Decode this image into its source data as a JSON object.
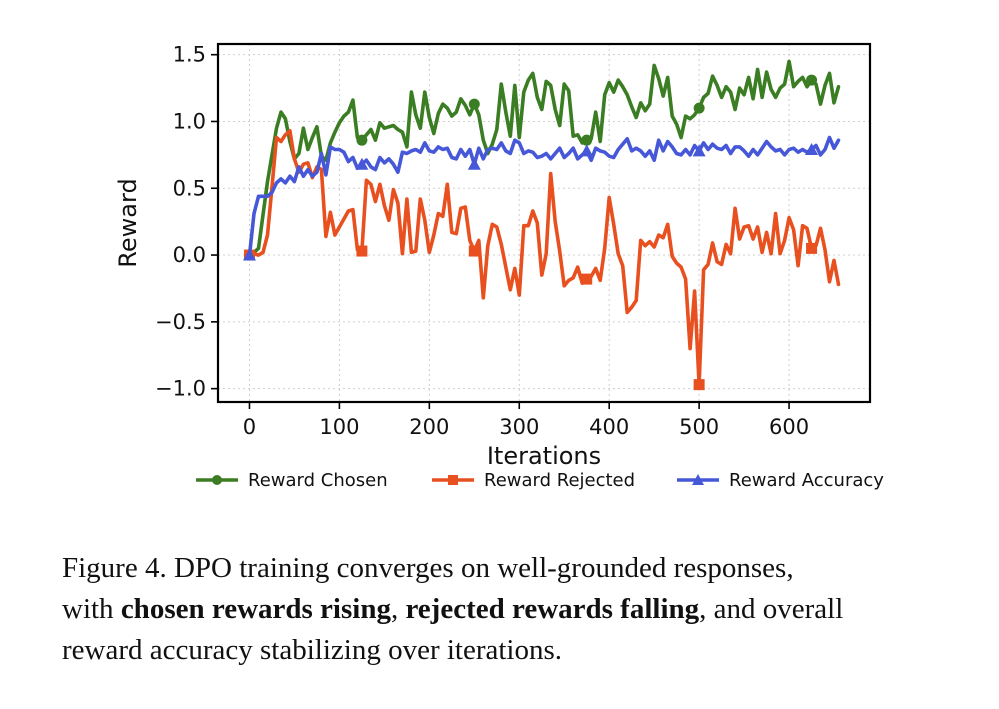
{
  "chart_data": {
    "type": "line",
    "xlabel": "Iterations",
    "ylabel": "Reward",
    "xlim": [
      -35,
      690
    ],
    "ylim": [
      -1.1,
      1.58
    ],
    "xticks": [
      0,
      100,
      200,
      300,
      400,
      500,
      600
    ],
    "yticks": [
      1.5,
      1.0,
      0.5,
      0.0,
      -0.5,
      -1.0
    ],
    "ytick_labels": [
      "1.5",
      "1.0",
      "0.5",
      "0.0",
      "−0.5",
      "−1.0"
    ],
    "grid": true,
    "legend_position": "below",
    "series": [
      {
        "name": "Reward Chosen",
        "color": "#3a7d22",
        "marker": "circle",
        "markevery": 125,
        "x": [
          0,
          5,
          10,
          15,
          20,
          25,
          30,
          35,
          40,
          45,
          50,
          55,
          60,
          65,
          70,
          75,
          80,
          85,
          90,
          95,
          100,
          105,
          110,
          115,
          120,
          125,
          130,
          135,
          140,
          145,
          150,
          155,
          160,
          165,
          170,
          175,
          180,
          185,
          190,
          195,
          200,
          205,
          210,
          215,
          220,
          225,
          230,
          235,
          240,
          245,
          250,
          255,
          260,
          265,
          270,
          275,
          280,
          285,
          290,
          295,
          300,
          305,
          310,
          315,
          320,
          325,
          330,
          335,
          340,
          345,
          350,
          355,
          360,
          365,
          370,
          375,
          380,
          385,
          390,
          395,
          400,
          405,
          410,
          415,
          420,
          425,
          430,
          435,
          440,
          445,
          450,
          455,
          460,
          465,
          470,
          475,
          480,
          485,
          490,
          495,
          500,
          505,
          510,
          515,
          520,
          525,
          530,
          535,
          540,
          545,
          550,
          555,
          560,
          565,
          570,
          575,
          580,
          585,
          590,
          595,
          600,
          605,
          610,
          615,
          620,
          625,
          630,
          635,
          640,
          645,
          650,
          655
        ],
        "y": [
          0,
          0.02,
          0.05,
          0.3,
          0.55,
          0.75,
          0.95,
          1.07,
          1.02,
          0.85,
          0.72,
          0.76,
          0.95,
          0.79,
          0.88,
          0.96,
          0.74,
          0.71,
          0.84,
          0.92,
          0.99,
          1.04,
          1.07,
          1.16,
          0.88,
          0.86,
          0.9,
          0.94,
          0.86,
          0.99,
          0.95,
          0.96,
          0.97,
          0.94,
          0.92,
          0.81,
          1.22,
          1.05,
          0.95,
          1.22,
          1.03,
          0.91,
          1.06,
          1.13,
          1.1,
          1.04,
          1.07,
          1.17,
          1.12,
          1.05,
          1.13,
          1.05,
          0.86,
          0.76,
          0.83,
          0.94,
          1.28,
          1.07,
          0.89,
          1.27,
          0.88,
          1.22,
          1.31,
          1.36,
          1.18,
          1.09,
          1.3,
          1.27,
          1.09,
          0.97,
          1.28,
          1.23,
          0.89,
          0.9,
          0.84,
          0.86,
          0.87,
          1.07,
          0.85,
          1.2,
          1.29,
          1.22,
          1.31,
          1.26,
          1.2,
          1.11,
          1.03,
          1.14,
          1.08,
          1.13,
          1.42,
          1.32,
          1.19,
          1.33,
          1.04,
          0.98,
          0.88,
          1.04,
          1.02,
          1.05,
          1.1,
          1.18,
          1.21,
          1.34,
          1.27,
          1.18,
          1.26,
          1.22,
          1.09,
          1.25,
          1.2,
          1.33,
          1.17,
          1.39,
          1.18,
          1.37,
          1.24,
          1.18,
          1.25,
          1.28,
          1.45,
          1.26,
          1.3,
          1.33,
          1.26,
          1.31,
          1.28,
          1.13,
          1.27,
          1.36,
          1.14,
          1.26
        ]
      },
      {
        "name": "Reward Rejected",
        "color": "#e85020",
        "marker": "square",
        "markevery": 125,
        "x": [
          0,
          5,
          10,
          15,
          20,
          25,
          30,
          35,
          40,
          45,
          50,
          55,
          60,
          65,
          70,
          75,
          80,
          85,
          90,
          95,
          100,
          105,
          110,
          115,
          120,
          125,
          130,
          135,
          140,
          145,
          150,
          155,
          160,
          165,
          170,
          175,
          180,
          185,
          190,
          195,
          200,
          205,
          210,
          215,
          220,
          225,
          230,
          235,
          240,
          245,
          250,
          255,
          260,
          265,
          270,
          275,
          280,
          285,
          290,
          295,
          300,
          305,
          310,
          315,
          320,
          325,
          330,
          335,
          340,
          345,
          350,
          355,
          360,
          365,
          370,
          375,
          380,
          385,
          390,
          395,
          400,
          405,
          410,
          415,
          420,
          425,
          430,
          435,
          440,
          445,
          450,
          455,
          460,
          465,
          470,
          475,
          480,
          485,
          490,
          495,
          500,
          505,
          510,
          515,
          520,
          525,
          530,
          535,
          540,
          545,
          550,
          555,
          560,
          565,
          570,
          575,
          580,
          585,
          590,
          595,
          600,
          605,
          610,
          615,
          620,
          625,
          630,
          635,
          640,
          645,
          650,
          655
        ],
        "y": [
          0,
          0.01,
          0,
          0.02,
          0.15,
          0.51,
          0.88,
          0.85,
          0.9,
          0.93,
          0.72,
          0.62,
          0.68,
          0.69,
          0.58,
          0.66,
          0.64,
          0.14,
          0.32,
          0.15,
          0.21,
          0.27,
          0.33,
          0.34,
          0.04,
          0.03,
          0.56,
          0.53,
          0.4,
          0.53,
          0.37,
          0.26,
          0.49,
          0.39,
          0.01,
          0.42,
          0.02,
          0.03,
          0.42,
          0.26,
          0.02,
          0.15,
          0.31,
          0.29,
          0.53,
          0.17,
          0.16,
          0.35,
          0.36,
          0.11,
          0.03,
          0.11,
          -0.32,
          0.07,
          0.23,
          0.21,
          0.08,
          -0.09,
          -0.26,
          -0.1,
          -0.3,
          0.22,
          0.22,
          0.33,
          0.24,
          -0.15,
          0.01,
          0.61,
          0.25,
          0.03,
          -0.23,
          -0.19,
          -0.17,
          -0.09,
          -0.21,
          -0.18,
          -0.16,
          -0.1,
          -0.19,
          0.05,
          0.43,
          0.23,
          0.01,
          -0.08,
          -0.43,
          -0.39,
          -0.34,
          0.11,
          0.07,
          0.1,
          0.06,
          0.15,
          0.13,
          0.23,
          -0.01,
          -0.06,
          -0.09,
          -0.18,
          -0.7,
          -0.27,
          -0.97,
          -0.11,
          -0.07,
          0.09,
          -0.05,
          -0.07,
          0.08,
          0.01,
          0.35,
          0.12,
          0.21,
          0.22,
          0.12,
          0.21,
          0.02,
          0.17,
          0.01,
          0.31,
          0.01,
          0.11,
          0.28,
          0.19,
          -0.08,
          0.22,
          0.2,
          0.05,
          0.07,
          0.2,
          0.04,
          -0.2,
          -0.04,
          -0.22
        ]
      },
      {
        "name": "Reward Accuracy",
        "color": "#4658d8",
        "marker": "triangle",
        "markevery": 125,
        "x": [
          0,
          5,
          10,
          15,
          20,
          25,
          30,
          35,
          40,
          45,
          50,
          55,
          60,
          65,
          70,
          75,
          80,
          85,
          90,
          95,
          100,
          105,
          110,
          115,
          120,
          125,
          130,
          135,
          140,
          145,
          150,
          155,
          160,
          165,
          170,
          175,
          180,
          185,
          190,
          195,
          200,
          205,
          210,
          215,
          220,
          225,
          230,
          235,
          240,
          245,
          250,
          255,
          260,
          265,
          270,
          275,
          280,
          285,
          290,
          295,
          300,
          305,
          310,
          315,
          320,
          325,
          330,
          335,
          340,
          345,
          350,
          355,
          360,
          365,
          370,
          375,
          380,
          385,
          390,
          395,
          400,
          405,
          410,
          415,
          420,
          425,
          430,
          435,
          440,
          445,
          450,
          455,
          460,
          465,
          470,
          475,
          480,
          485,
          490,
          495,
          500,
          505,
          510,
          515,
          520,
          525,
          530,
          535,
          540,
          545,
          550,
          555,
          560,
          565,
          570,
          575,
          580,
          585,
          590,
          595,
          600,
          605,
          610,
          615,
          620,
          625,
          630,
          635,
          640,
          645,
          650,
          655
        ],
        "y": [
          0,
          0.31,
          0.44,
          0.44,
          0.44,
          0.47,
          0.54,
          0.57,
          0.54,
          0.59,
          0.55,
          0.66,
          0.59,
          0.64,
          0.59,
          0.62,
          0.76,
          0.6,
          0.81,
          0.79,
          0.79,
          0.77,
          0.7,
          0.73,
          0.65,
          0.68,
          0.71,
          0.66,
          0.64,
          0.73,
          0.69,
          0.72,
          0.68,
          0.62,
          0.77,
          0.76,
          0.78,
          0.79,
          0.77,
          0.84,
          0.78,
          0.77,
          0.81,
          0.79,
          0.8,
          0.73,
          0.72,
          0.79,
          0.74,
          0.79,
          0.68,
          0.8,
          0.72,
          0.79,
          0.8,
          0.79,
          0.84,
          0.78,
          0.76,
          0.86,
          0.84,
          0.76,
          0.78,
          0.77,
          0.73,
          0.74,
          0.76,
          0.72,
          0.76,
          0.8,
          0.73,
          0.76,
          0.8,
          0.72,
          0.75,
          0.78,
          0.71,
          0.8,
          0.78,
          0.77,
          0.74,
          0.73,
          0.79,
          0.83,
          0.87,
          0.78,
          0.8,
          0.78,
          0.74,
          0.78,
          0.71,
          0.86,
          0.78,
          0.85,
          0.81,
          0.76,
          0.75,
          0.79,
          0.75,
          0.82,
          0.78,
          0.84,
          0.79,
          0.83,
          0.8,
          0.79,
          0.82,
          0.76,
          0.81,
          0.81,
          0.78,
          0.74,
          0.79,
          0.75,
          0.8,
          0.85,
          0.81,
          0.78,
          0.79,
          0.75,
          0.79,
          0.8,
          0.77,
          0.79,
          0.77,
          0.79,
          0.82,
          0.75,
          0.79,
          0.88,
          0.8,
          0.86
        ]
      }
    ]
  },
  "caption": {
    "line1_prefix": "Figure 4.  DPO training converges on well-grounded responses,",
    "line2_prefix": "with ",
    "bold1": "chosen rewards rising",
    "sep1": ", ",
    "bold2": "rejected rewards falling",
    "suffix": ", and overall",
    "line3": "reward accuracy stabilizing over iterations."
  }
}
